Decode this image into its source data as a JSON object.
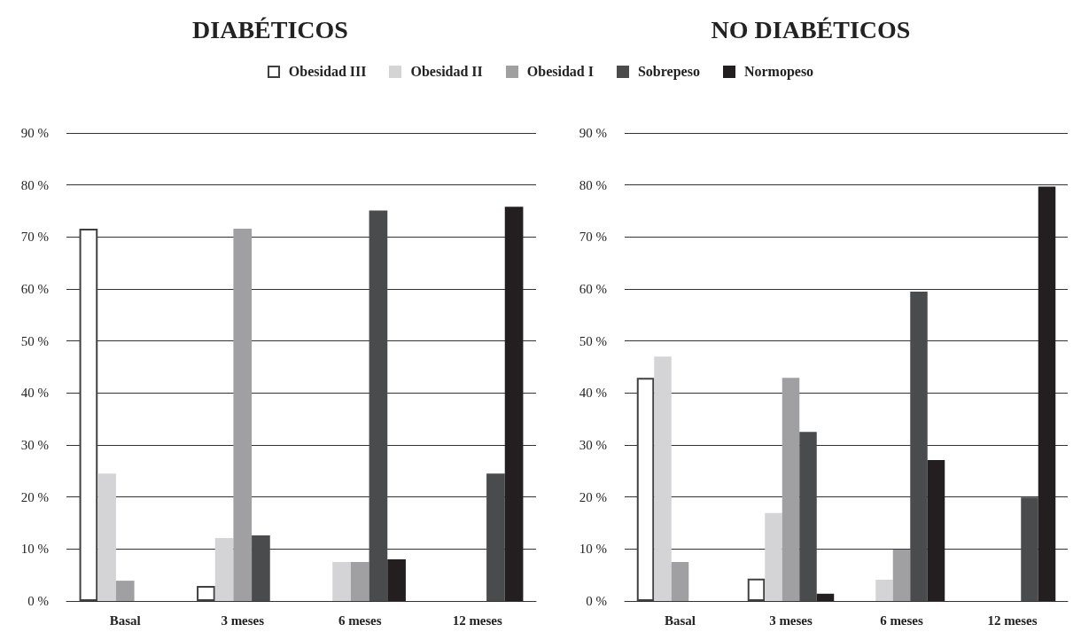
{
  "chart_data": [
    {
      "type": "bar",
      "title": "DIABÉTICOS",
      "categories": [
        "Basal",
        "3 meses",
        "6 meses",
        "12 meses"
      ],
      "series": [
        {
          "name": "Obesidad III",
          "color": "#ffffff",
          "values": [
            71.6,
            2.9,
            null,
            null
          ]
        },
        {
          "name": "Obesidad II",
          "color": "#d4d4d6",
          "values": [
            24.5,
            12.1,
            7.5,
            null
          ]
        },
        {
          "name": "Obesidad I",
          "color": "#a0a0a3",
          "values": [
            3.9,
            71.6,
            7.5,
            null
          ]
        },
        {
          "name": "Sobrepeso",
          "color": "#4a4b4d",
          "values": [
            null,
            12.6,
            75.1,
            24.5
          ]
        },
        {
          "name": "Normopeso",
          "color": "#231f20",
          "values": [
            null,
            null,
            8.0,
            75.8
          ]
        }
      ],
      "ylim": [
        0,
        90
      ],
      "yticks": [
        {
          "value": 0,
          "label": "0 %"
        },
        {
          "value": 10,
          "label": "10 %"
        },
        {
          "value": 20,
          "label": "20 %"
        },
        {
          "value": 30,
          "label": "30 %"
        },
        {
          "value": 40,
          "label": "40 %"
        },
        {
          "value": 50,
          "label": "50 %"
        },
        {
          "value": 60,
          "label": "60 %"
        },
        {
          "value": 70,
          "label": "70 %"
        },
        {
          "value": 80,
          "label": "80 %"
        },
        {
          "value": 90,
          "label": "90 %"
        }
      ],
      "grid": "y",
      "legend": "top"
    },
    {
      "type": "bar",
      "title": "NO DIABÉTICOS",
      "categories": [
        "Basal",
        "3 meses",
        "6 meses",
        "12 meses"
      ],
      "series": [
        {
          "name": "Obesidad III",
          "color": "#ffffff",
          "values": [
            42.9,
            4.3,
            null,
            null
          ]
        },
        {
          "name": "Obesidad II",
          "color": "#d4d4d6",
          "values": [
            47.0,
            16.9,
            4.1,
            null
          ]
        },
        {
          "name": "Obesidad I",
          "color": "#a0a0a3",
          "values": [
            7.5,
            42.9,
            9.9,
            null
          ]
        },
        {
          "name": "Sobrepeso",
          "color": "#4a4b4d",
          "values": [
            null,
            32.5,
            59.5,
            19.9
          ]
        },
        {
          "name": "Normopeso",
          "color": "#231f20",
          "values": [
            null,
            1.4,
            27.1,
            79.7
          ]
        }
      ],
      "ylim": [
        0,
        90
      ],
      "yticks": [
        {
          "value": 0,
          "label": "0 %"
        },
        {
          "value": 10,
          "label": "10 %"
        },
        {
          "value": 20,
          "label": "20 %"
        },
        {
          "value": 30,
          "label": "30 %"
        },
        {
          "value": 40,
          "label": "40 %"
        },
        {
          "value": 50,
          "label": "50 %"
        },
        {
          "value": 60,
          "label": "60 %"
        },
        {
          "value": 70,
          "label": "70 %"
        },
        {
          "value": 80,
          "label": "80 %"
        },
        {
          "value": 90,
          "label": "90 %"
        }
      ],
      "grid": "y",
      "legend": "top"
    }
  ]
}
